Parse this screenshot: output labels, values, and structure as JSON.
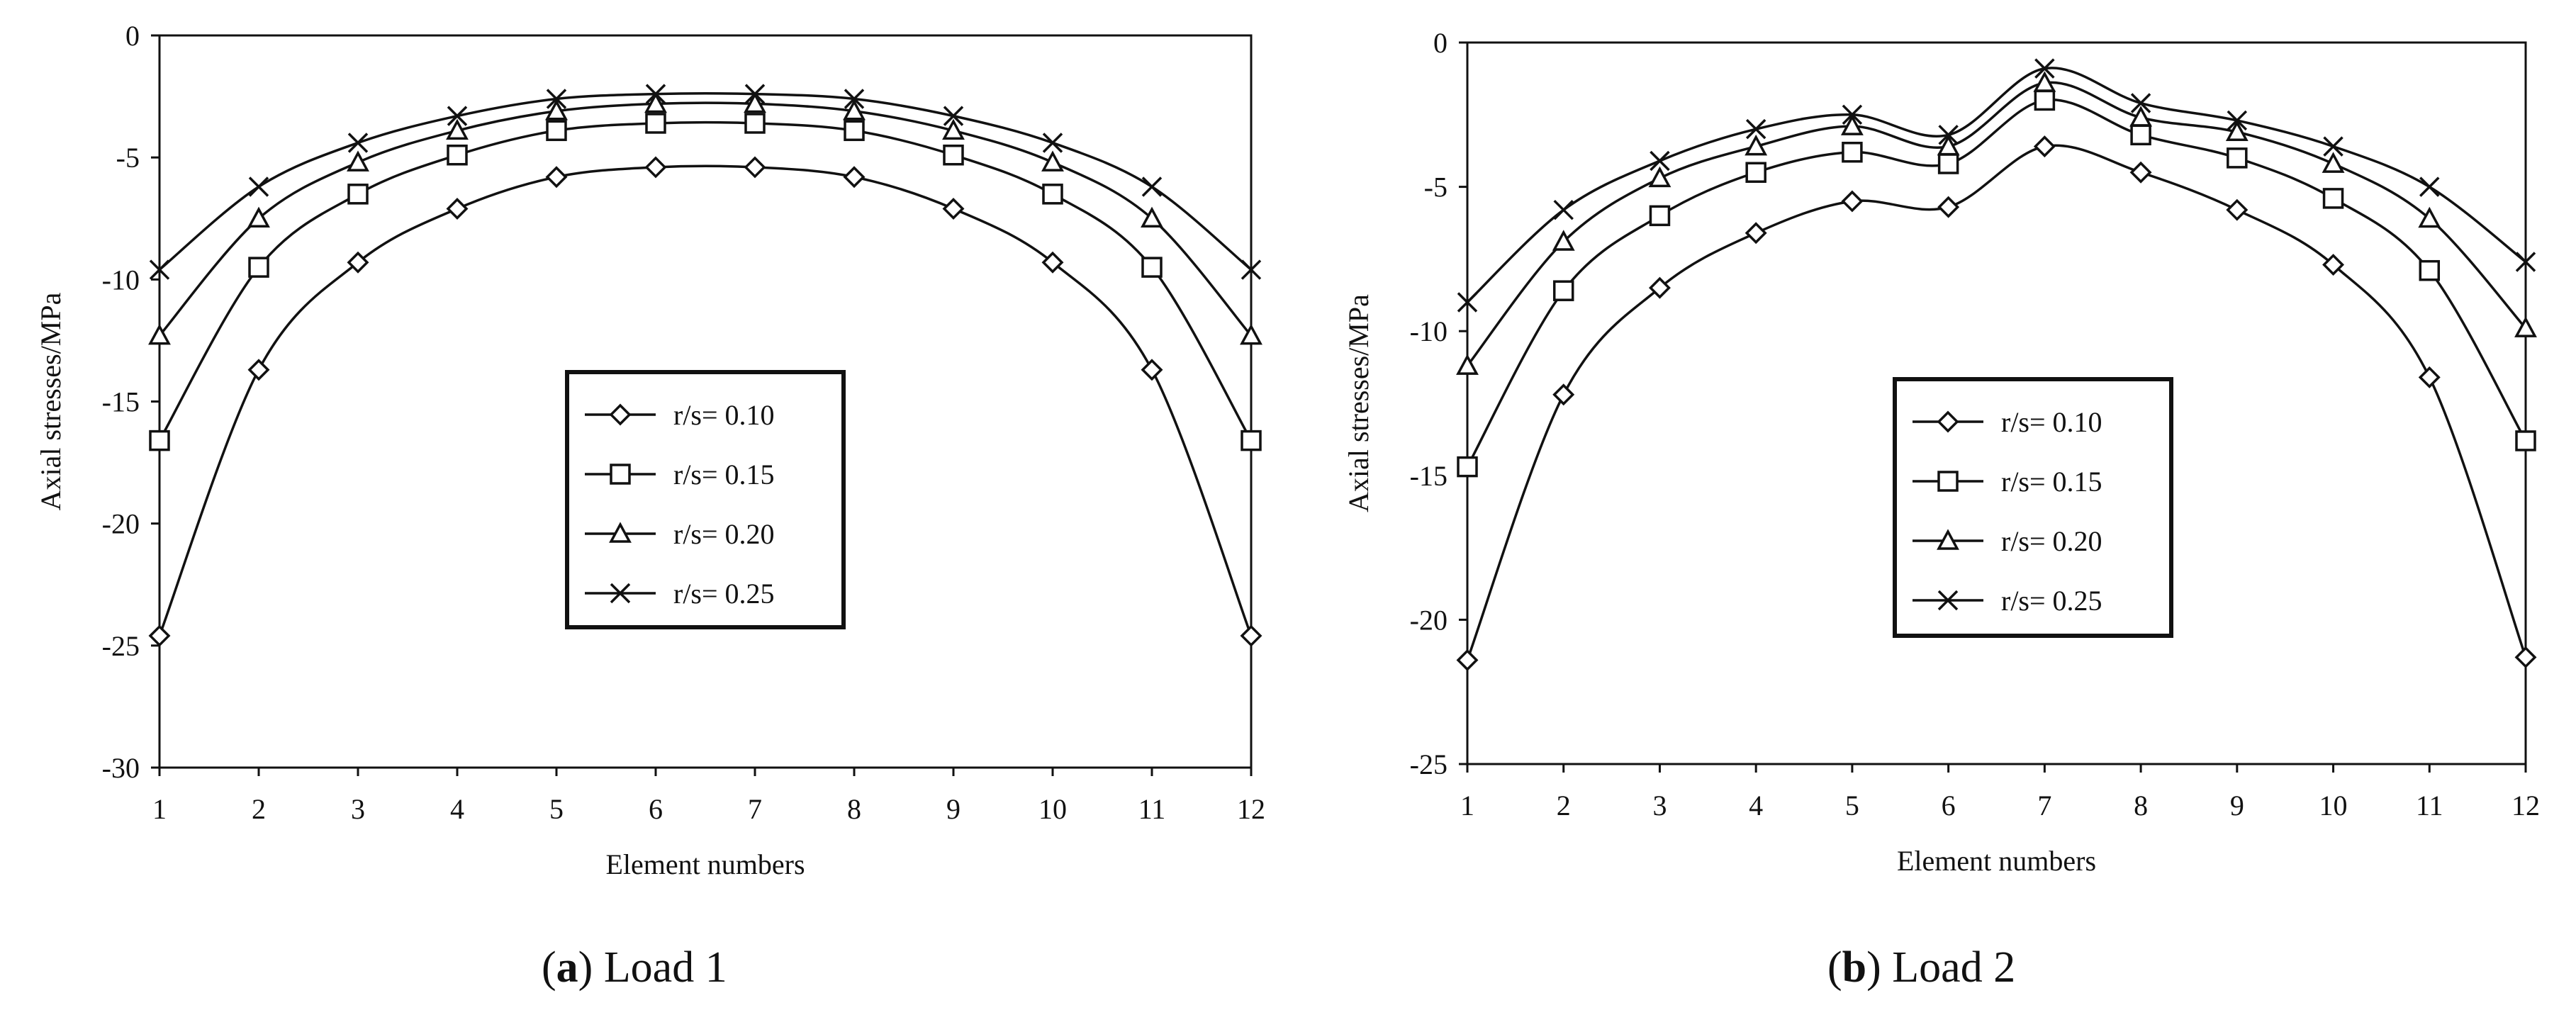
{
  "chart_data": [
    {
      "type": "line",
      "caption_letter": "a",
      "caption_text": "Load 1",
      "xlabel": "Element numbers",
      "ylabel": "Axial stresses/MPa",
      "x": [
        1,
        2,
        3,
        4,
        5,
        6,
        7,
        8,
        9,
        10,
        11,
        12
      ],
      "ylim": [
        -30,
        0
      ],
      "yticks": [
        0,
        -5,
        -10,
        -15,
        -20,
        -25,
        -30
      ],
      "grid": false,
      "legend_position": "center",
      "series": [
        {
          "name": "r/s= 0.10",
          "marker": "diamond",
          "values": [
            -24.6,
            -13.7,
            -9.3,
            -7.1,
            -5.8,
            -5.4,
            -5.4,
            -5.8,
            -7.1,
            -9.3,
            -13.7,
            -24.6
          ]
        },
        {
          "name": "r/s= 0.15",
          "marker": "square",
          "values": [
            -16.6,
            -9.5,
            -6.5,
            -4.9,
            -3.9,
            -3.6,
            -3.6,
            -3.9,
            -4.9,
            -6.5,
            -9.5,
            -16.6
          ]
        },
        {
          "name": "r/s= 0.20",
          "marker": "triangle",
          "values": [
            -12.3,
            -7.5,
            -5.2,
            -3.9,
            -3.1,
            -2.8,
            -2.8,
            -3.1,
            -3.9,
            -5.2,
            -7.5,
            -12.3
          ]
        },
        {
          "name": "r/s= 0.25",
          "marker": "x",
          "values": [
            -9.6,
            -6.2,
            -4.4,
            -3.3,
            -2.6,
            -2.4,
            -2.4,
            -2.6,
            -3.3,
            -4.4,
            -6.2,
            -9.6
          ]
        }
      ]
    },
    {
      "type": "line",
      "caption_letter": "b",
      "caption_text": "Load 2",
      "xlabel": "Element numbers",
      "ylabel": "Axial stresses/MPa",
      "x": [
        1,
        2,
        3,
        4,
        5,
        6,
        7,
        8,
        9,
        10,
        11,
        12
      ],
      "ylim": [
        -25,
        0
      ],
      "yticks": [
        0,
        -5,
        -10,
        -15,
        -20,
        -25
      ],
      "grid": false,
      "legend_position": "center",
      "series": [
        {
          "name": "r/s= 0.10",
          "marker": "diamond",
          "values": [
            -21.4,
            -12.2,
            -8.5,
            -6.6,
            -5.5,
            -5.7,
            -3.6,
            -4.5,
            -5.8,
            -7.7,
            -11.6,
            -21.3
          ]
        },
        {
          "name": "r/s= 0.15",
          "marker": "square",
          "values": [
            -14.7,
            -8.6,
            -6.0,
            -4.5,
            -3.8,
            -4.2,
            -2.0,
            -3.2,
            -4.0,
            -5.4,
            -7.9,
            -13.8
          ]
        },
        {
          "name": "r/s= 0.20",
          "marker": "triangle",
          "values": [
            -11.2,
            -6.9,
            -4.7,
            -3.6,
            -2.9,
            -3.6,
            -1.4,
            -2.6,
            -3.1,
            -4.2,
            -6.1,
            -9.9
          ]
        },
        {
          "name": "r/s= 0.25",
          "marker": "x",
          "values": [
            -9.0,
            -5.8,
            -4.1,
            -3.0,
            -2.5,
            -3.2,
            -0.9,
            -2.1,
            -2.7,
            -3.6,
            -5.0,
            -7.6
          ]
        }
      ]
    }
  ]
}
